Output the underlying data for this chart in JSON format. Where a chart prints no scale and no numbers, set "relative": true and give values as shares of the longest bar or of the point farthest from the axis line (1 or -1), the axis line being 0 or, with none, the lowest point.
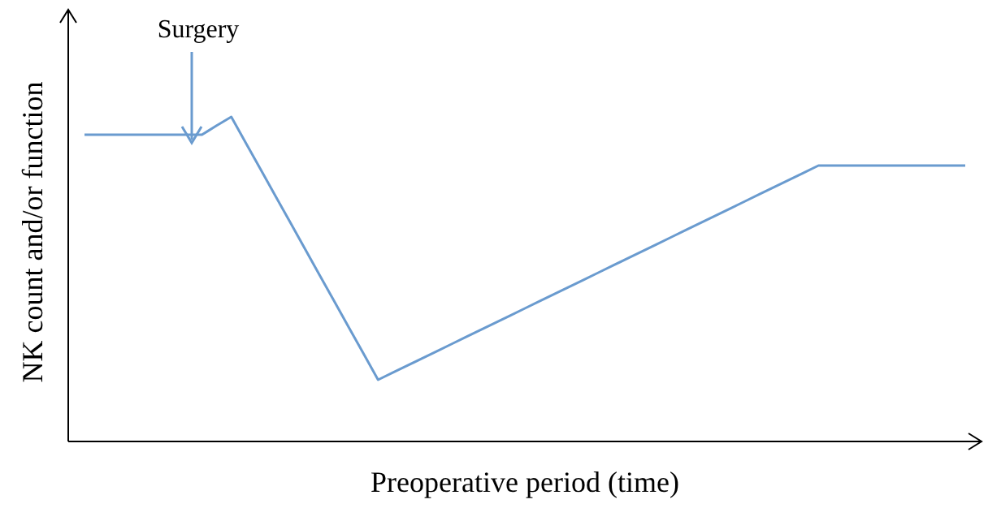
{
  "chart_data": {
    "type": "line",
    "relative": true,
    "xlabel": "Preoperative period (time)",
    "ylabel": "NK count and/or function",
    "categories": [
      null,
      null,
      null,
      null,
      null,
      null,
      null,
      null,
      null,
      null,
      null,
      null,
      null,
      null,
      null,
      null,
      null,
      null,
      null,
      null,
      null,
      null,
      null,
      null,
      null,
      null,
      null,
      null,
      null,
      null,
      null,
      null,
      null,
      null,
      null,
      null,
      null,
      null,
      null,
      null,
      null,
      null,
      null,
      null,
      null,
      null,
      null,
      null,
      null,
      null,
      null,
      null,
      null,
      null,
      null,
      null,
      null,
      null,
      null,
      null,
      null
    ],
    "series": [
      {
        "color": "#6a9bcf",
        "values": [
          0.945,
          0.945,
          0.945,
          0.945,
          0.945,
          0.945,
          0.945,
          0.945,
          0.945,
          0.973,
          1,
          0.919,
          0.838,
          0.757,
          0.676,
          0.595,
          0.514,
          0.433,
          0.352,
          0.271,
          0.19,
          0.212,
          0.234,
          0.256,
          0.278,
          0.3,
          0.322,
          0.344,
          0.366,
          0.388,
          0.41,
          0.432,
          0.454,
          0.476,
          0.498,
          0.52,
          0.542,
          0.564,
          0.586,
          0.608,
          0.63,
          0.652,
          0.674,
          0.696,
          0.718,
          0.74,
          0.762,
          0.784,
          0.806,
          0.828,
          0.85,
          0.85,
          0.85,
          0.85,
          0.85,
          0.85,
          0.85,
          0.85,
          0.85,
          0.85,
          0.85
        ]
      }
    ],
    "annotations": [
      "Surgery"
    ]
  }
}
